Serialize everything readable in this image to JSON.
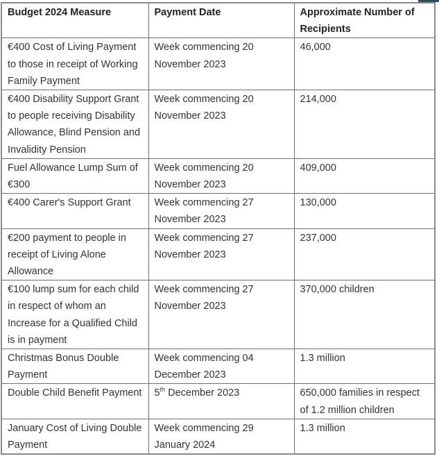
{
  "headers": [
    "Budget 2024 Measure",
    "Payment Date",
    "Approximate Number of Recipients"
  ],
  "rows": [
    {
      "measure": "€400 Cost of Living Payment to those in receipt of Working Family Payment",
      "date": "Week commencing 20 November 2023",
      "recipients": "46,000"
    },
    {
      "measure": "€400 Disability Support Grant to people receiving Disability Allowance, Blind Pension and Invalidity Pension",
      "date": "Week commencing 20 November 2023",
      "recipients": "214,000"
    },
    {
      "measure": "Fuel Allowance Lump Sum of €300",
      "date": "Week commencing 20 November 2023",
      "recipients": "409,000"
    },
    {
      "measure": "€400 Carer's Support Grant",
      "date": "Week commencing 27 November 2023",
      "recipients": "130,000"
    },
    {
      "measure": "€200 payment to people in receipt of Living Alone Allowance",
      "date": "Week commencing 27 November 2023",
      "recipients": "237,000"
    },
    {
      "measure": "€100 lump sum for each child in respect of whom an Increase for a Qualified Child is in payment",
      "date": "Week commencing 27 November 2023",
      "recipients": "370,000 children"
    },
    {
      "measure": "Christmas Bonus Double Payment",
      "date": "Week commencing 04 December 2023",
      "recipients": "1.3 million"
    },
    {
      "measure": "Double Child Benefit Payment",
      "date_day": "5",
      "date_suffix": "th",
      "date_rest": " December 2023",
      "recipients": "650,000 families in respect of 1.2 million children"
    },
    {
      "measure": "January Cost of Living Double Payment",
      "date": "Week commencing 29 January 2024",
      "recipients": "1.3 million"
    }
  ]
}
